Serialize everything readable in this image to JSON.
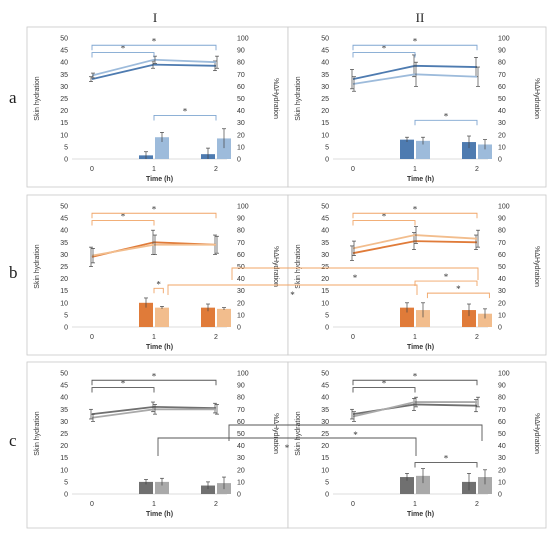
{
  "column_labels": [
    "I",
    "II"
  ],
  "row_labels": [
    "a",
    "b",
    "c"
  ],
  "chart_data": [
    {
      "id": "a-I",
      "type": "line+bar",
      "row": "a",
      "column": "I",
      "color": "blue",
      "palette": {
        "dark": "#4e7bb0",
        "light": "#9dbbdb",
        "sig": "#7fa6d1"
      },
      "xlabel": "Time (h)",
      "ylabel": "Skin hydration",
      "y2label": "%ΔHydration",
      "x_ticks": [
        "0",
        "1",
        "2"
      ],
      "ylim": [
        0,
        50
      ],
      "y_ticks": [
        "0",
        "5",
        "10",
        "15",
        "20",
        "25",
        "30",
        "35",
        "40",
        "45",
        "50"
      ],
      "y2lim": [
        0,
        100
      ],
      "y2_ticks": [
        "0",
        "10",
        "20",
        "30",
        "40",
        "50",
        "60",
        "70",
        "80",
        "90",
        "100"
      ],
      "lines": [
        {
          "values": [
            33,
            39,
            38.5
          ],
          "err": [
            1,
            1.5,
            2
          ]
        },
        {
          "values": [
            34.5,
            41,
            40
          ],
          "err": [
            1,
            1.5,
            2.5
          ]
        }
      ],
      "bars": [
        {
          "x": [
            1,
            2
          ],
          "values": [
            1.5,
            2
          ],
          "err": [
            1.5,
            2.5
          ]
        },
        {
          "x": [
            1,
            2
          ],
          "values": [
            9,
            8.5
          ],
          "err": [
            2,
            4
          ]
        }
      ],
      "significance_brackets": [
        {
          "from": 0,
          "to": 1,
          "y": 44,
          "label": "*"
        },
        {
          "from": 0,
          "to": 2,
          "y": 47,
          "label": "*"
        },
        {
          "from": 1,
          "to": 2,
          "y": 18,
          "label": "*"
        }
      ],
      "cross_brackets": []
    },
    {
      "id": "a-II",
      "type": "line+bar",
      "row": "a",
      "column": "II",
      "color": "blue",
      "palette": {
        "dark": "#4e7bb0",
        "light": "#9dbbdb",
        "sig": "#7fa6d1"
      },
      "xlabel": "Time (h)",
      "ylabel": "Skin hydration",
      "y2label": "%ΔHydration",
      "x_ticks": [
        "0",
        "1",
        "2"
      ],
      "ylim": [
        0,
        50
      ],
      "y_ticks": [
        "0",
        "5",
        "10",
        "15",
        "20",
        "25",
        "30",
        "35",
        "40",
        "45",
        "50"
      ],
      "y2lim": [
        0,
        100
      ],
      "y2_ticks": [
        "0",
        "10",
        "20",
        "30",
        "40",
        "50",
        "60",
        "70",
        "80",
        "90",
        "100"
      ],
      "lines": [
        {
          "values": [
            33,
            38.5,
            38
          ],
          "err": [
            4,
            4.5,
            4
          ]
        },
        {
          "values": [
            31,
            35,
            34
          ],
          "err": [
            3,
            5,
            4
          ]
        }
      ],
      "bars": [
        {
          "x": [
            1,
            2
          ],
          "values": [
            8,
            7
          ],
          "err": [
            1,
            2.5
          ]
        },
        {
          "x": [
            1,
            2
          ],
          "values": [
            7.5,
            6
          ],
          "err": [
            1.5,
            2
          ]
        }
      ],
      "significance_brackets": [
        {
          "from": 0,
          "to": 1,
          "y": 44,
          "label": "*"
        },
        {
          "from": 0,
          "to": 2,
          "y": 47,
          "label": "*"
        },
        {
          "from": 1,
          "to": 2,
          "y": 16,
          "label": "*"
        }
      ],
      "cross_brackets": []
    },
    {
      "id": "b-I",
      "type": "line+bar",
      "row": "b",
      "column": "I",
      "color": "orange",
      "palette": {
        "dark": "#e07b39",
        "light": "#f2bd8d",
        "sig": "#f0a466"
      },
      "xlabel": "Time (h)",
      "ylabel": "Skin hydration",
      "y2label": "%ΔHydration",
      "x_ticks": [
        "0",
        "1",
        "2"
      ],
      "ylim": [
        0,
        50
      ],
      "y_ticks": [
        "0",
        "5",
        "10",
        "15",
        "20",
        "25",
        "30",
        "35",
        "40",
        "45",
        "50"
      ],
      "y2lim": [
        0,
        100
      ],
      "y2_ticks": [
        "0",
        "10",
        "20",
        "30",
        "40",
        "50",
        "60",
        "70",
        "80",
        "90",
        "100"
      ],
      "lines": [
        {
          "values": [
            29,
            35,
            34
          ],
          "err": [
            4,
            5,
            4
          ]
        },
        {
          "values": [
            29.5,
            34,
            34
          ],
          "err": [
            3,
            4,
            3.5
          ]
        }
      ],
      "bars": [
        {
          "x": [
            1,
            2
          ],
          "values": [
            10,
            8
          ],
          "err": [
            2,
            1.5
          ]
        },
        {
          "x": [
            1,
            2
          ],
          "values": [
            8,
            7.5
          ],
          "err": [
            0.5,
            0.5
          ]
        }
      ],
      "significance_brackets": [
        {
          "from": 0,
          "to": 1,
          "y": 44,
          "label": "*"
        },
        {
          "from": 0,
          "to": 2,
          "y": 47,
          "label": "*"
        },
        {
          "from": 1,
          "to": 1.15,
          "y": 16,
          "label": "*"
        }
      ],
      "cross_brackets": [
        {
          "label": "*"
        }
      ]
    },
    {
      "id": "b-II",
      "type": "line+bar",
      "row": "b",
      "column": "II",
      "color": "orange",
      "palette": {
        "dark": "#e07b39",
        "light": "#f2bd8d",
        "sig": "#f0a466"
      },
      "xlabel": "Time (h)",
      "ylabel": "Skin hydration",
      "y2label": "%ΔHydration",
      "x_ticks": [
        "0",
        "1",
        "2"
      ],
      "ylim": [
        0,
        50
      ],
      "y_ticks": [
        "0",
        "5",
        "10",
        "15",
        "20",
        "25",
        "30",
        "35",
        "40",
        "45",
        "50"
      ],
      "y2lim": [
        0,
        100
      ],
      "y2_ticks": [
        "0",
        "10",
        "20",
        "30",
        "40",
        "50",
        "60",
        "70",
        "80",
        "90",
        "100"
      ],
      "lines": [
        {
          "values": [
            30.5,
            35.5,
            35
          ],
          "err": [
            3,
            3.5,
            3
          ]
        },
        {
          "values": [
            32.5,
            38,
            36.5
          ],
          "err": [
            3,
            3.5,
            3.5
          ]
        }
      ],
      "bars": [
        {
          "x": [
            1,
            2
          ],
          "values": [
            8,
            7
          ],
          "err": [
            2,
            2.5
          ]
        },
        {
          "x": [
            1,
            2
          ],
          "values": [
            7,
            5.5
          ],
          "err": [
            3,
            2
          ]
        }
      ],
      "significance_brackets": [
        {
          "from": 0,
          "to": 1,
          "y": 44,
          "label": "*"
        },
        {
          "from": 0,
          "to": 2,
          "y": 47,
          "label": "*"
        },
        {
          "from": 1,
          "to": 2,
          "y": 19,
          "label": "*"
        },
        {
          "from": 1.2,
          "to": 2.2,
          "y": 14,
          "label": "*"
        }
      ],
      "cross_brackets": [
        {
          "label": "*"
        }
      ]
    },
    {
      "id": "c-I",
      "type": "line+bar",
      "row": "c",
      "column": "I",
      "color": "gray",
      "palette": {
        "dark": "#707070",
        "light": "#a9a9a9",
        "sig": "#555555"
      },
      "xlabel": "Time (h)",
      "ylabel": "Skin hydration",
      "y2label": "%ΔHydration",
      "x_ticks": [
        "0",
        "1",
        "2"
      ],
      "ylim": [
        0,
        50
      ],
      "y_ticks": [
        "0",
        "5",
        "10",
        "15",
        "20",
        "25",
        "30",
        "35",
        "40",
        "45",
        "50"
      ],
      "y2lim": [
        0,
        100
      ],
      "y2_ticks": [
        "0",
        "10",
        "20",
        "30",
        "40",
        "50",
        "60",
        "70",
        "80",
        "90",
        "100"
      ],
      "lines": [
        {
          "values": [
            33,
            36,
            35.5
          ],
          "err": [
            2,
            2,
            2
          ]
        },
        {
          "values": [
            31.5,
            35,
            35
          ],
          "err": [
            1.5,
            2,
            2
          ]
        }
      ],
      "bars": [
        {
          "x": [
            1,
            2
          ],
          "values": [
            5,
            3.5
          ],
          "err": [
            1,
            1.5
          ]
        },
        {
          "x": [
            1,
            2
          ],
          "values": [
            5,
            4.5
          ],
          "err": [
            1.5,
            2.5
          ]
        }
      ],
      "significance_brackets": [
        {
          "from": 0,
          "to": 1,
          "y": 44,
          "label": "*"
        },
        {
          "from": 0,
          "to": 2,
          "y": 47,
          "label": "*"
        }
      ],
      "cross_brackets": [
        {
          "label": "*"
        },
        {
          "label": "*"
        }
      ]
    },
    {
      "id": "c-II",
      "type": "line+bar",
      "row": "c",
      "column": "II",
      "color": "gray",
      "palette": {
        "dark": "#707070",
        "light": "#a9a9a9",
        "sig": "#555555"
      },
      "xlabel": "Time (h)",
      "ylabel": "Skin hydration",
      "y2label": "%ΔHydration",
      "x_ticks": [
        "0",
        "1",
        "2"
      ],
      "ylim": [
        0,
        50
      ],
      "y_ticks": [
        "0",
        "5",
        "10",
        "15",
        "20",
        "25",
        "30",
        "35",
        "40",
        "45",
        "50"
      ],
      "y2lim": [
        0,
        100
      ],
      "y2_ticks": [
        "0",
        "10",
        "20",
        "30",
        "40",
        "50",
        "60",
        "70",
        "80",
        "90",
        "100"
      ],
      "lines": [
        {
          "values": [
            33,
            37,
            36.5
          ],
          "err": [
            2,
            2.5,
            2.5
          ]
        },
        {
          "values": [
            32,
            38,
            38
          ],
          "err": [
            2,
            2,
            2
          ]
        }
      ],
      "bars": [
        {
          "x": [
            1,
            2
          ],
          "values": [
            7,
            5
          ],
          "err": [
            1.5,
            3.5
          ]
        },
        {
          "x": [
            1,
            2
          ],
          "values": [
            7.5,
            7
          ],
          "err": [
            3,
            3
          ]
        }
      ],
      "significance_brackets": [
        {
          "from": 0,
          "to": 1,
          "y": 44,
          "label": "*"
        },
        {
          "from": 0,
          "to": 2,
          "y": 47,
          "label": "*"
        },
        {
          "from": 1,
          "to": 2,
          "y": 13,
          "label": "*"
        }
      ],
      "cross_brackets": [
        {
          "label": "*"
        }
      ]
    }
  ]
}
